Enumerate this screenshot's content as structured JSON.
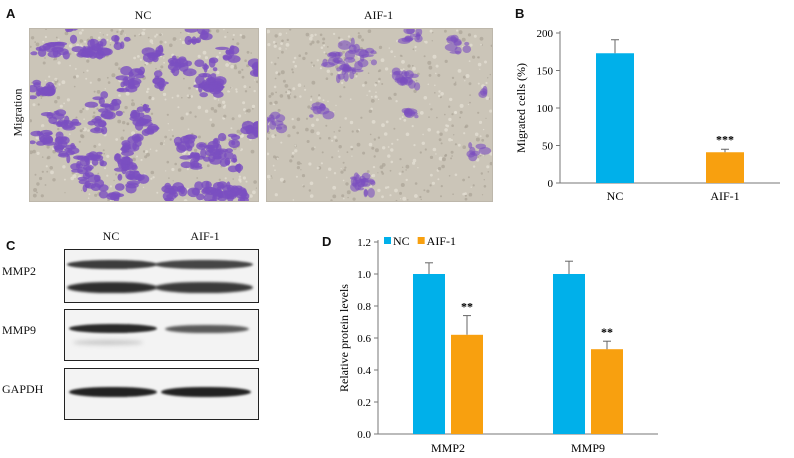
{
  "panels": {
    "a": {
      "label": "A",
      "row_label": "Migration",
      "images": [
        {
          "caption": "NC"
        },
        {
          "caption": "AIF-1"
        }
      ]
    },
    "b": {
      "label": "B"
    },
    "c": {
      "label": "C",
      "lane_labels": [
        "NC",
        "AIF-1"
      ],
      "blots": [
        {
          "label": "MMP2"
        },
        {
          "label": "MMP9"
        },
        {
          "label": "GAPDH"
        }
      ]
    },
    "d": {
      "label": "D"
    }
  },
  "colors": {
    "nc": "#00b0ea",
    "aif1": "#f8a00f",
    "stain": "#7b4fc0"
  },
  "chart_data": [
    {
      "type": "bar",
      "panel": "B",
      "categories": [
        "NC",
        "AIF-1"
      ],
      "values": [
        173,
        41
      ],
      "errors": [
        18,
        4
      ],
      "significance": [
        "",
        "***"
      ],
      "colors": [
        "#00b0ea",
        "#f8a00f"
      ],
      "ylabel": "Migrated cells (%)",
      "ylim": [
        0,
        200
      ],
      "yticks": [
        0,
        50,
        100,
        150,
        200
      ]
    },
    {
      "type": "bar",
      "panel": "D",
      "categories": [
        "MMP2",
        "MMP9"
      ],
      "series": [
        {
          "name": "NC",
          "values": [
            1.0,
            1.0
          ],
          "errors": [
            0.07,
            0.08
          ],
          "color": "#00b0ea",
          "significance": [
            "",
            ""
          ]
        },
        {
          "name": "AIF-1",
          "values": [
            0.62,
            0.53
          ],
          "errors": [
            0.12,
            0.05
          ],
          "color": "#f8a00f",
          "significance": [
            "**",
            "**"
          ]
        }
      ],
      "ylabel": "Relative protein levels",
      "ylim": [
        0,
        1.2
      ],
      "yticks": [
        "0.0",
        "0.2",
        "0.4",
        "0.6",
        "0.8",
        "1.0",
        "1.2"
      ],
      "legend": "top-left"
    }
  ]
}
